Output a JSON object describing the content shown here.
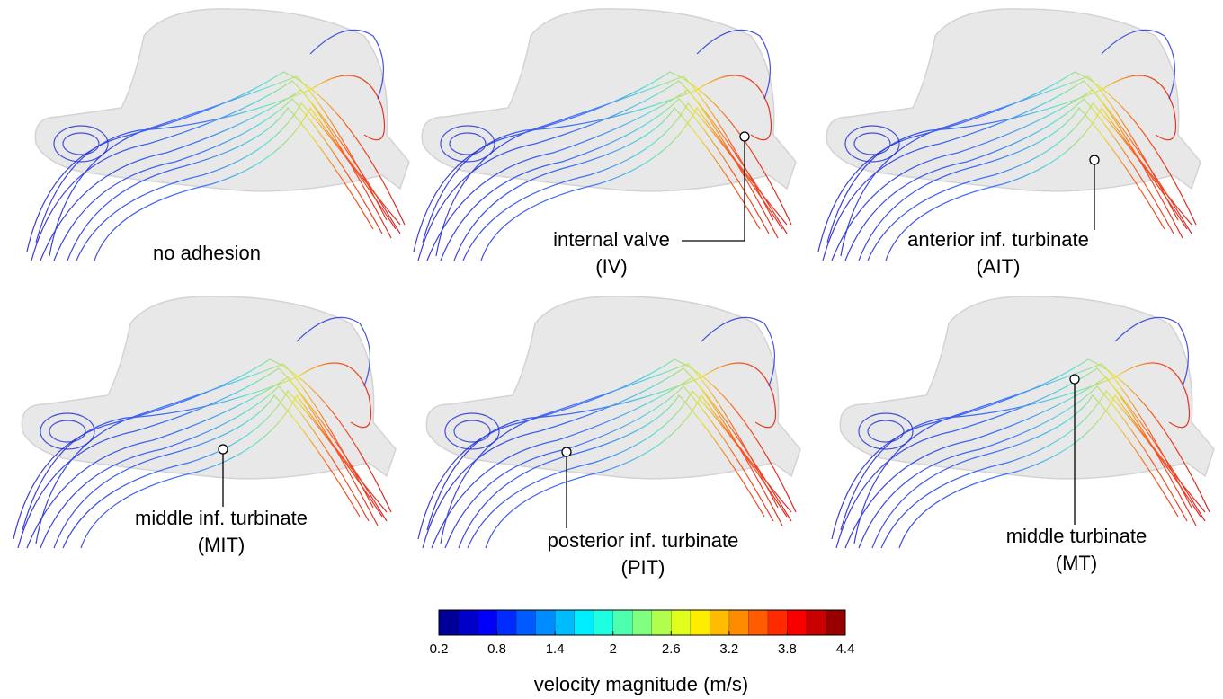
{
  "panels": [
    {
      "label": "no adhesion"
    },
    {
      "label": "internal valve",
      "abbr": "(IV)"
    },
    {
      "label": "anterior inf. turbinate",
      "abbr": "(AIT)"
    },
    {
      "label": "middle inf. turbinate",
      "abbr": "(MIT)"
    },
    {
      "label": "posterior inf. turbinate",
      "abbr": "(PIT)"
    },
    {
      "label": "middle turbinate",
      "abbr": "(MT)"
    }
  ],
  "colorbar": {
    "label": "velocity magnitude (m/s)",
    "range": [
      0.2,
      4.4
    ],
    "ticks": [
      0.2,
      0.8,
      1.4,
      2,
      2.6,
      3.2,
      3.8,
      4.4
    ],
    "colors": [
      "#000098",
      "#0000c8",
      "#0000f9",
      "#002bff",
      "#005bff",
      "#008cff",
      "#00bcff",
      "#00edff",
      "#1effe1",
      "#4fffb0",
      "#80ff80",
      "#b0ff4f",
      "#e1ff1e",
      "#ffed00",
      "#ffbc00",
      "#ff8c00",
      "#ff5b00",
      "#ff2b00",
      "#f90000",
      "#c80000",
      "#980000"
    ]
  }
}
